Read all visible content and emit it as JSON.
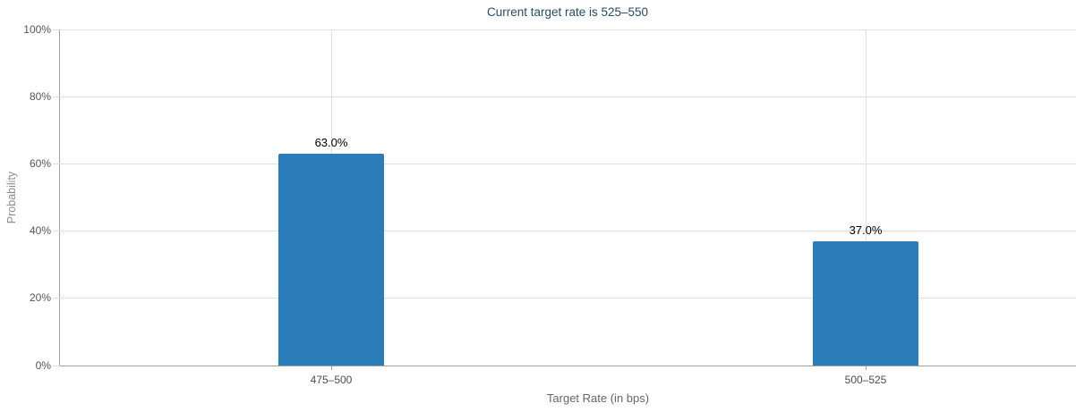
{
  "chart_data": {
    "type": "bar",
    "title": "Current target rate is 525–550",
    "categories": [
      "475–500",
      "500–525"
    ],
    "values": [
      63.0,
      37.0
    ],
    "value_labels": [
      "63.0%",
      "37.0%"
    ],
    "xlabel": "Target Rate (in bps)",
    "ylabel": "Probability",
    "ylim": [
      0,
      100
    ],
    "ytick_interval": 20,
    "ytick_labels": [
      "0%",
      "20%",
      "40%",
      "60%",
      "80%",
      "100%"
    ],
    "grid": true,
    "legend": "none",
    "colors": {
      "bar": "#2a7db8",
      "title": "#274b6d",
      "gridline": "#e0e0e0",
      "axis_line": "#a0a0a0",
      "ytick_label": "#555555",
      "xtick_label": "#4d4d4d",
      "value_label": "#000000",
      "x_axis_title": "#666666",
      "y_axis_title": "#8c8c8c",
      "background": "#ffffff"
    }
  }
}
